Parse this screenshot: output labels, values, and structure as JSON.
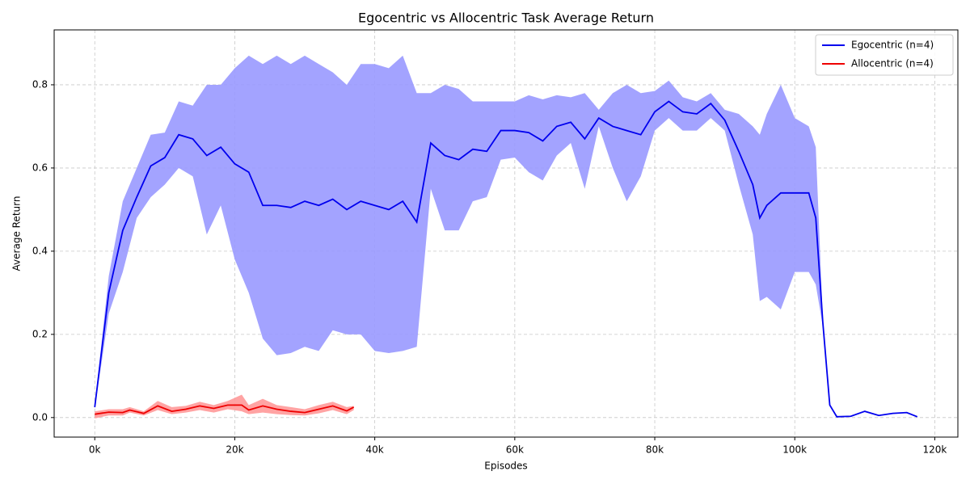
{
  "chart_data": {
    "type": "line",
    "title": "Egocentric vs Allocentric Task Average Return",
    "x_label": "Episodes",
    "y_label": "Average Return",
    "xlim": [
      -5800,
      123300
    ],
    "ylim": [
      -0.047,
      0.932
    ],
    "xticks": [
      {
        "value": 0,
        "label": "0k"
      },
      {
        "value": 20000,
        "label": "20k"
      },
      {
        "value": 40000,
        "label": "40k"
      },
      {
        "value": 60000,
        "label": "60k"
      },
      {
        "value": 80000,
        "label": "80k"
      },
      {
        "value": 100000,
        "label": "100k"
      },
      {
        "value": 120000,
        "label": "120k"
      }
    ],
    "yticks": [
      {
        "value": 0,
        "label": "0.0"
      },
      0.2,
      0.4,
      0.6,
      0.8
    ],
    "grid": true,
    "legend": "upper right",
    "series": [
      {
        "name": "Egocentric (n=4)",
        "color": "#0000ee",
        "band_color": "#9999ff",
        "x": [
          0,
          2000,
          4000,
          6000,
          8000,
          10000,
          12000,
          14000,
          16000,
          18000,
          20000,
          22000,
          24000,
          26000,
          28000,
          30000,
          32000,
          34000,
          36000,
          38000,
          40000,
          42000,
          44000,
          46000,
          48000,
          50000,
          52000,
          54000,
          56000,
          58000,
          60000,
          62000,
          64000,
          66000,
          68000,
          70000,
          72000,
          74000,
          76000,
          78000,
          80000,
          82000,
          84000,
          86000,
          88000,
          90000,
          92000,
          94000,
          95000,
          96000,
          98000,
          100000,
          102000,
          103000,
          104000,
          105000,
          106000,
          108000,
          110000,
          112000,
          114000,
          116000,
          117500
        ],
        "values": [
          0.025,
          0.3,
          0.45,
          0.53,
          0.605,
          0.625,
          0.68,
          0.67,
          0.63,
          0.65,
          0.61,
          0.59,
          0.51,
          0.51,
          0.505,
          0.52,
          0.51,
          0.525,
          0.5,
          0.52,
          0.51,
          0.5,
          0.52,
          0.47,
          0.66,
          0.63,
          0.62,
          0.645,
          0.64,
          0.69,
          0.69,
          0.685,
          0.665,
          0.7,
          0.71,
          0.67,
          0.72,
          0.7,
          0.69,
          0.68,
          0.735,
          0.76,
          0.735,
          0.73,
          0.755,
          0.715,
          0.64,
          0.56,
          0.48,
          0.51,
          0.54,
          0.54,
          0.54,
          0.48,
          0.23,
          0.03,
          0.002,
          0.003,
          0.015,
          0.005,
          0.01,
          0.012,
          0.002
        ],
        "band_lower": [
          0.02,
          0.25,
          0.35,
          0.48,
          0.53,
          0.56,
          0.6,
          0.58,
          0.44,
          0.51,
          0.38,
          0.3,
          0.19,
          0.15,
          0.155,
          0.17,
          0.16,
          0.21,
          0.2,
          0.2,
          0.16,
          0.155,
          0.16,
          0.17,
          0.55,
          0.45,
          0.45,
          0.52,
          0.53,
          0.62,
          0.625,
          0.59,
          0.57,
          0.63,
          0.66,
          0.55,
          0.7,
          0.6,
          0.52,
          0.58,
          0.69,
          0.72,
          0.69,
          0.69,
          0.72,
          0.69,
          0.56,
          0.44,
          0.28,
          0.29,
          0.26,
          0.35,
          0.35,
          0.32,
          0.22,
          0.03,
          0.002,
          0.003,
          0.015,
          0.005,
          0.01,
          0.012,
          0.002
        ],
        "band_upper": [
          0.03,
          0.34,
          0.52,
          0.6,
          0.68,
          0.685,
          0.76,
          0.75,
          0.8,
          0.8,
          0.84,
          0.87,
          0.85,
          0.87,
          0.85,
          0.87,
          0.85,
          0.83,
          0.8,
          0.85,
          0.85,
          0.84,
          0.87,
          0.78,
          0.78,
          0.8,
          0.79,
          0.76,
          0.76,
          0.76,
          0.76,
          0.775,
          0.765,
          0.775,
          0.77,
          0.78,
          0.74,
          0.78,
          0.8,
          0.78,
          0.785,
          0.81,
          0.77,
          0.76,
          0.78,
          0.74,
          0.73,
          0.7,
          0.68,
          0.73,
          0.8,
          0.72,
          0.7,
          0.65,
          0.24,
          0.03,
          0.002,
          0.003,
          0.015,
          0.005,
          0.01,
          0.012,
          0.002
        ]
      },
      {
        "name": "Allocentric (n=4)",
        "color": "#ee0000",
        "band_color": "#ff9999",
        "x": [
          0,
          2000,
          4000,
          5000,
          7000,
          9000,
          11000,
          13000,
          15000,
          17000,
          19000,
          21000,
          22000,
          24000,
          26000,
          28000,
          30000,
          32000,
          34000,
          36000,
          37000
        ],
        "values": [
          0.008,
          0.013,
          0.012,
          0.018,
          0.01,
          0.028,
          0.015,
          0.02,
          0.028,
          0.022,
          0.03,
          0.03,
          0.018,
          0.028,
          0.02,
          0.015,
          0.012,
          0.02,
          0.028,
          0.016,
          0.025
        ],
        "band_lower": [
          -0.002,
          0.005,
          0.005,
          0.012,
          0.005,
          0.018,
          0.008,
          0.012,
          0.018,
          0.012,
          0.02,
          0.015,
          0.008,
          0.012,
          0.008,
          0.006,
          0.005,
          0.01,
          0.018,
          0.008,
          0.018
        ],
        "band_upper": [
          0.015,
          0.02,
          0.02,
          0.025,
          0.015,
          0.04,
          0.025,
          0.028,
          0.038,
          0.03,
          0.04,
          0.055,
          0.03,
          0.045,
          0.03,
          0.025,
          0.02,
          0.03,
          0.038,
          0.025,
          0.028
        ]
      }
    ]
  }
}
